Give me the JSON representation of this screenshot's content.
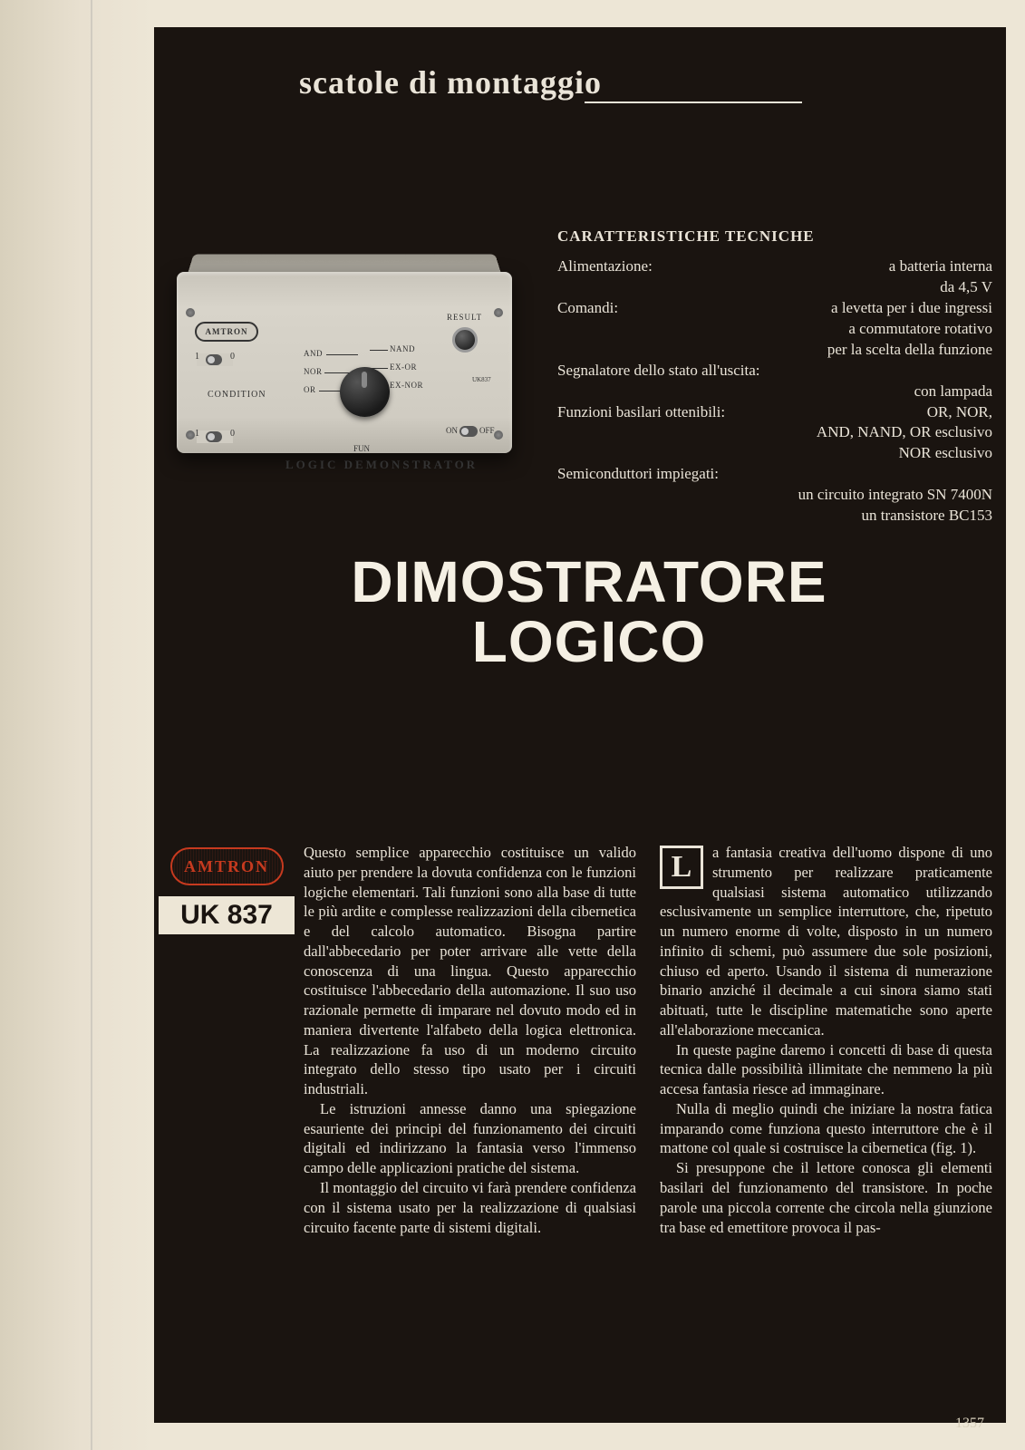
{
  "header": {
    "series_title": "scatole di montaggio"
  },
  "device": {
    "logo_text": "AMTRON",
    "condition_label": "CONDITION",
    "fun_label": "FUN",
    "demonstrator_label": "LOGIC DEMONSTRATOR",
    "result_label": "RESULT",
    "uk_small": "UK837",
    "on_label": "ON",
    "off_label": "OFF",
    "knob": {
      "and": "AND",
      "nor": "NOR",
      "or": "OR",
      "nand": "NAND",
      "exor": "EX-OR",
      "exnor": "EX-NOR"
    }
  },
  "specs": {
    "title": "CARATTERISTICHE TECNICHE",
    "rows": {
      "alimentazione_label": "Alimentazione:",
      "alimentazione_value": "a batteria interna",
      "alimentazione_line2": "da 4,5 V",
      "comandi_label": "Comandi:",
      "comandi_value": "a levetta per i due ingressi",
      "comandi_line2": "a commutatore rotativo",
      "comandi_line3": "per la scelta della funzione",
      "segnalatore_label": "Segnalatore dello stato all'uscita:",
      "segnalatore_value": "con lampada",
      "funzioni_label": "Funzioni basilari ottenibili:",
      "funzioni_value": "OR, NOR,",
      "funzioni_line2": "AND, NAND, OR esclusivo",
      "funzioni_line3": "NOR esclusivo",
      "semiconduttori_label": "Semiconduttori impiegati:",
      "semiconduttori_line2": "un circuito integrato SN 7400N",
      "semiconduttori_line3": "un transistore BC153"
    }
  },
  "title": {
    "line1": "DIMOSTRATORE",
    "line2": "LOGICO"
  },
  "brand": {
    "logo_text": "AMTRON",
    "code": "UK 837"
  },
  "body": {
    "col1": {
      "p1": "Questo semplice apparecchio costituisce un valido aiuto per prendere la dovuta confidenza con le funzioni logiche elementari. Tali funzioni sono alla base di tutte le più ardite e complesse realizzazioni della cibernetica e del calcolo automatico. Bisogna partire dall'abbecedario per poter arrivare alle vette della conoscenza di una lingua. Questo apparecchio costituisce l'abbecedario della automazione. Il suo uso razionale permette di imparare nel dovuto modo ed in maniera divertente l'alfabeto della logica elettronica. La realizzazione fa uso di un moderno circuito integrato dello stesso tipo usato per i circuiti industriali.",
      "p2": "Le istruzioni annesse danno una spiegazione esauriente dei principi del funzionamento dei circuiti digitali ed indirizzano la fantasia verso l'immenso campo delle applicazioni pratiche del sistema.",
      "p3": "Il montaggio del circuito vi farà prendere confidenza con il sistema usato per la realizzazione di qualsiasi circuito facente parte di sistemi digitali."
    },
    "col2": {
      "dropcap": "L",
      "p1": "a fantasia creativa dell'uomo dispone di uno strumento per realizzare praticamente qualsiasi sistema automatico utilizzando esclusivamente un semplice interruttore, che, ripetuto un numero enorme di volte, disposto in un numero infinito di schemi, può assumere due sole posizioni, chiuso ed aperto. Usando il sistema di numerazione binario anziché il decimale a cui sinora siamo stati abituati, tutte le discipline matematiche sono aperte all'elaborazione meccanica.",
      "p2": "In queste pagine daremo i concetti di base di questa tecnica dalle possibilità illimitate che nemmeno la più accesa fantasia riesce ad immaginare.",
      "p3": "Nulla di meglio quindi che iniziare la nostra fatica imparando come funziona questo interruttore che è il mattone col quale si costruisce la cibernetica (fig. 1).",
      "p4": "Si presuppone che il lettore conosca gli elementi basilari del funzionamento del transistore. In poche parole una piccola corrente che circola nella giunzione tra base ed emettitore provoca il pas-"
    }
  },
  "page_number": "1357",
  "colors": {
    "page_bg": "#ede6d6",
    "dark_bg": "#1a1410",
    "text_light": "#eae4d8",
    "accent_red": "#c73a1f",
    "device_body": "#d0ccc2"
  }
}
